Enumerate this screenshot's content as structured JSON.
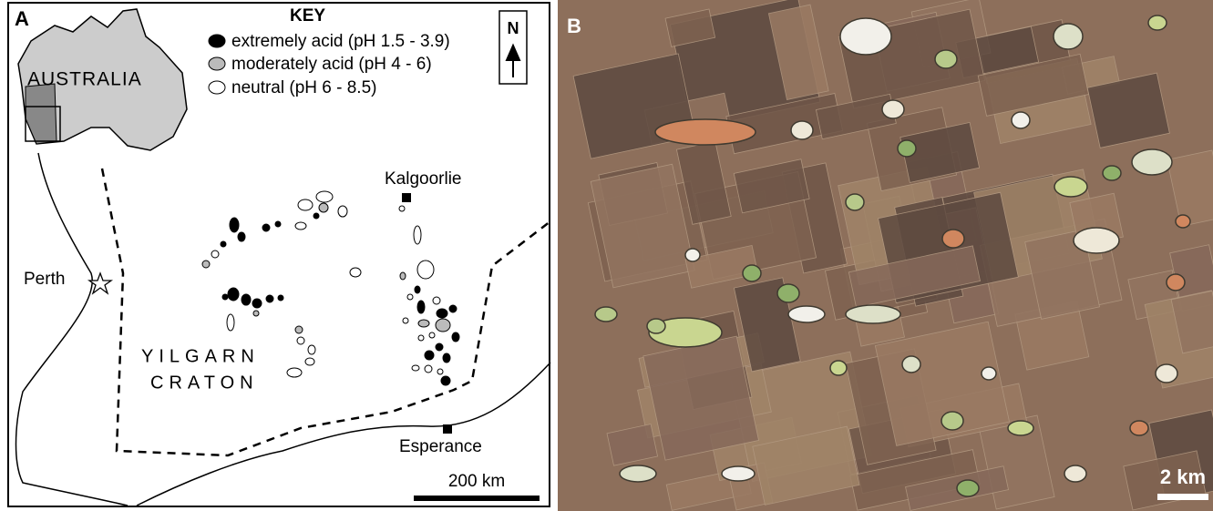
{
  "panel_a": {
    "label": "A",
    "inset_label": "AUSTRALIA",
    "key": {
      "title": "KEY",
      "items": [
        "extremely acid (pH 1.5 - 3.9)",
        "moderately acid (pH 4 - 6)",
        "neutral (pH 6 - 8.5)"
      ]
    },
    "north_arrow": "N",
    "places": {
      "kalgoorlie": "Kalgoorlie",
      "perth": "Perth",
      "esperance": "Esperance"
    },
    "region": [
      "YILGARN",
      "CRATON"
    ],
    "scale_bar": "200 km"
  },
  "panel_b": {
    "label": "B",
    "scale_bar": "2 km"
  }
}
